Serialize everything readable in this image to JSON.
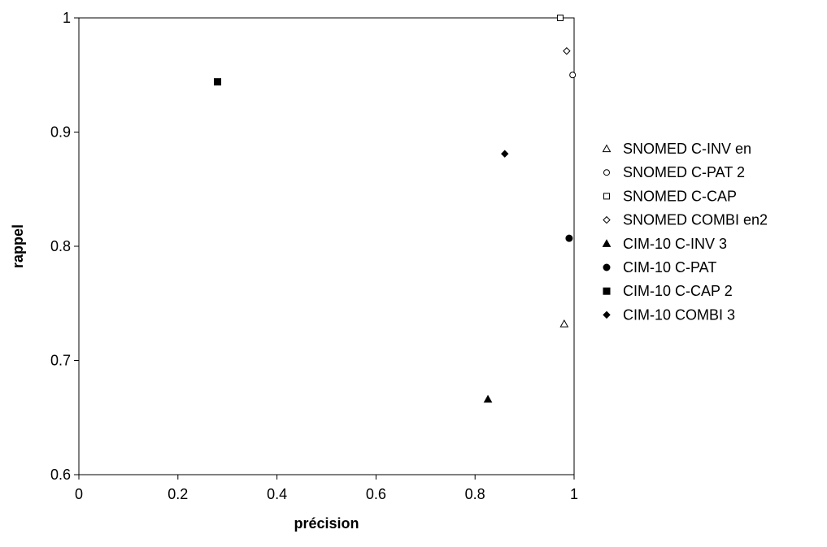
{
  "chart_data": {
    "type": "scatter",
    "xlabel": "précision",
    "ylabel": "rappel",
    "xlim": [
      0,
      1
    ],
    "ylim": [
      0.6,
      1
    ],
    "xticks": [
      "0",
      "0.2",
      "0.4",
      "0.6",
      "0.8",
      "1"
    ],
    "yticks": [
      "0.6",
      "0.7",
      "0.8",
      "0.9",
      "1"
    ],
    "grid": true,
    "legend_position": "right",
    "series": [
      {
        "name": "SNOMED C-INV en",
        "marker": "triangle-open",
        "x": [
          0.98
        ],
        "y": [
          0.732
        ]
      },
      {
        "name": "SNOMED C-PAT 2",
        "marker": "circle-open",
        "x": [
          0.997
        ],
        "y": [
          0.95
        ]
      },
      {
        "name": "SNOMED C-CAP",
        "marker": "square-open",
        "x": [
          0.972
        ],
        "y": [
          1.0
        ]
      },
      {
        "name": "SNOMED COMBI en2",
        "marker": "diamond-open",
        "x": [
          0.985
        ],
        "y": [
          0.971
        ]
      },
      {
        "name": "CIM-10 C-INV 3",
        "marker": "triangle-filled",
        "x": [
          0.826
        ],
        "y": [
          0.666
        ]
      },
      {
        "name": "CIM-10 C-PAT",
        "marker": "circle-filled",
        "x": [
          0.99
        ],
        "y": [
          0.807
        ]
      },
      {
        "name": "CIM-10 C-CAP 2",
        "marker": "square-filled",
        "x": [
          0.28
        ],
        "y": [
          0.944
        ]
      },
      {
        "name": "CIM-10 COMBI 3",
        "marker": "diamond-filled",
        "x": [
          0.86
        ],
        "y": [
          0.881
        ]
      }
    ]
  }
}
